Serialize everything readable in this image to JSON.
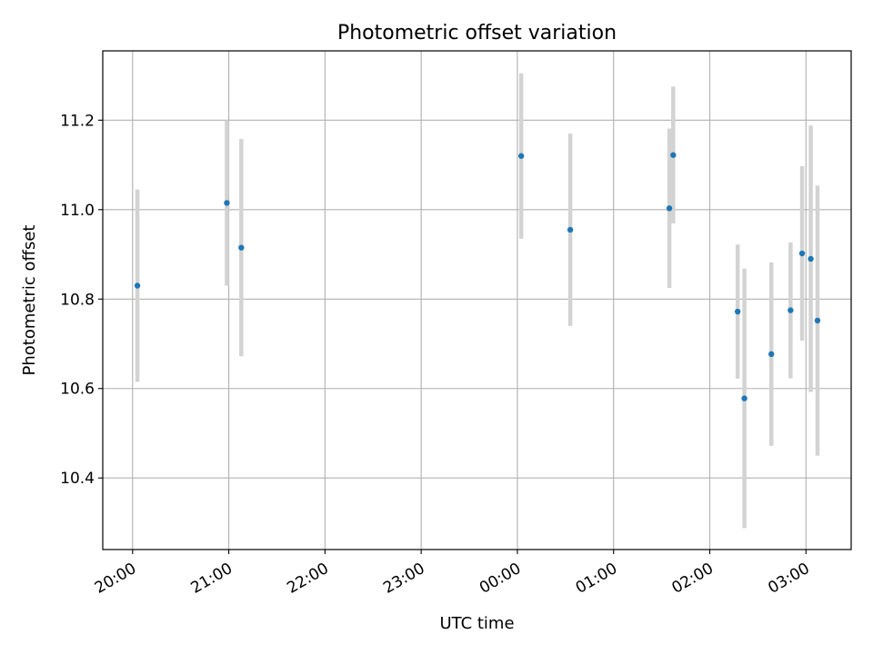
{
  "chart_data": {
    "type": "scatter",
    "title": "Photometric offset variation",
    "xlabel": "UTC time",
    "ylabel": "Photometric offset",
    "x_tick_labels": [
      "20:00",
      "21:00",
      "22:00",
      "23:00",
      "00:00",
      "01:00",
      "02:00",
      "03:00"
    ],
    "x_ticks_hours": [
      0,
      1,
      2,
      3,
      4,
      5,
      6,
      7
    ],
    "x_range_hours_after_20utc": [
      -0.31,
      7.47
    ],
    "y_ticks": [
      10.4,
      10.6,
      10.8,
      11.0,
      11.2
    ],
    "ylim": [
      10.24,
      11.355
    ],
    "grid": true,
    "point_color": "#1f77b4",
    "errorbar_color": "#d3d3d3",
    "points": [
      {
        "t_hours": 0.05,
        "y": 10.83,
        "err": 0.215
      },
      {
        "t_hours": 0.98,
        "y": 11.015,
        "err": 0.185
      },
      {
        "t_hours": 1.13,
        "y": 10.915,
        "err": 0.243
      },
      {
        "t_hours": 4.04,
        "y": 11.12,
        "err": 0.185
      },
      {
        "t_hours": 4.55,
        "y": 10.955,
        "err": 0.215
      },
      {
        "t_hours": 5.58,
        "y": 11.003,
        "err": 0.178
      },
      {
        "t_hours": 5.62,
        "y": 11.122,
        "err": 0.153
      },
      {
        "t_hours": 6.29,
        "y": 10.772,
        "err": 0.15
      },
      {
        "t_hours": 6.36,
        "y": 10.578,
        "err": 0.29
      },
      {
        "t_hours": 6.64,
        "y": 10.677,
        "err": 0.205
      },
      {
        "t_hours": 6.84,
        "y": 10.775,
        "err": 0.152
      },
      {
        "t_hours": 6.96,
        "y": 10.902,
        "err": 0.195
      },
      {
        "t_hours": 7.05,
        "y": 10.89,
        "err": 0.298
      },
      {
        "t_hours": 7.12,
        "y": 10.752,
        "err": 0.302
      }
    ]
  }
}
